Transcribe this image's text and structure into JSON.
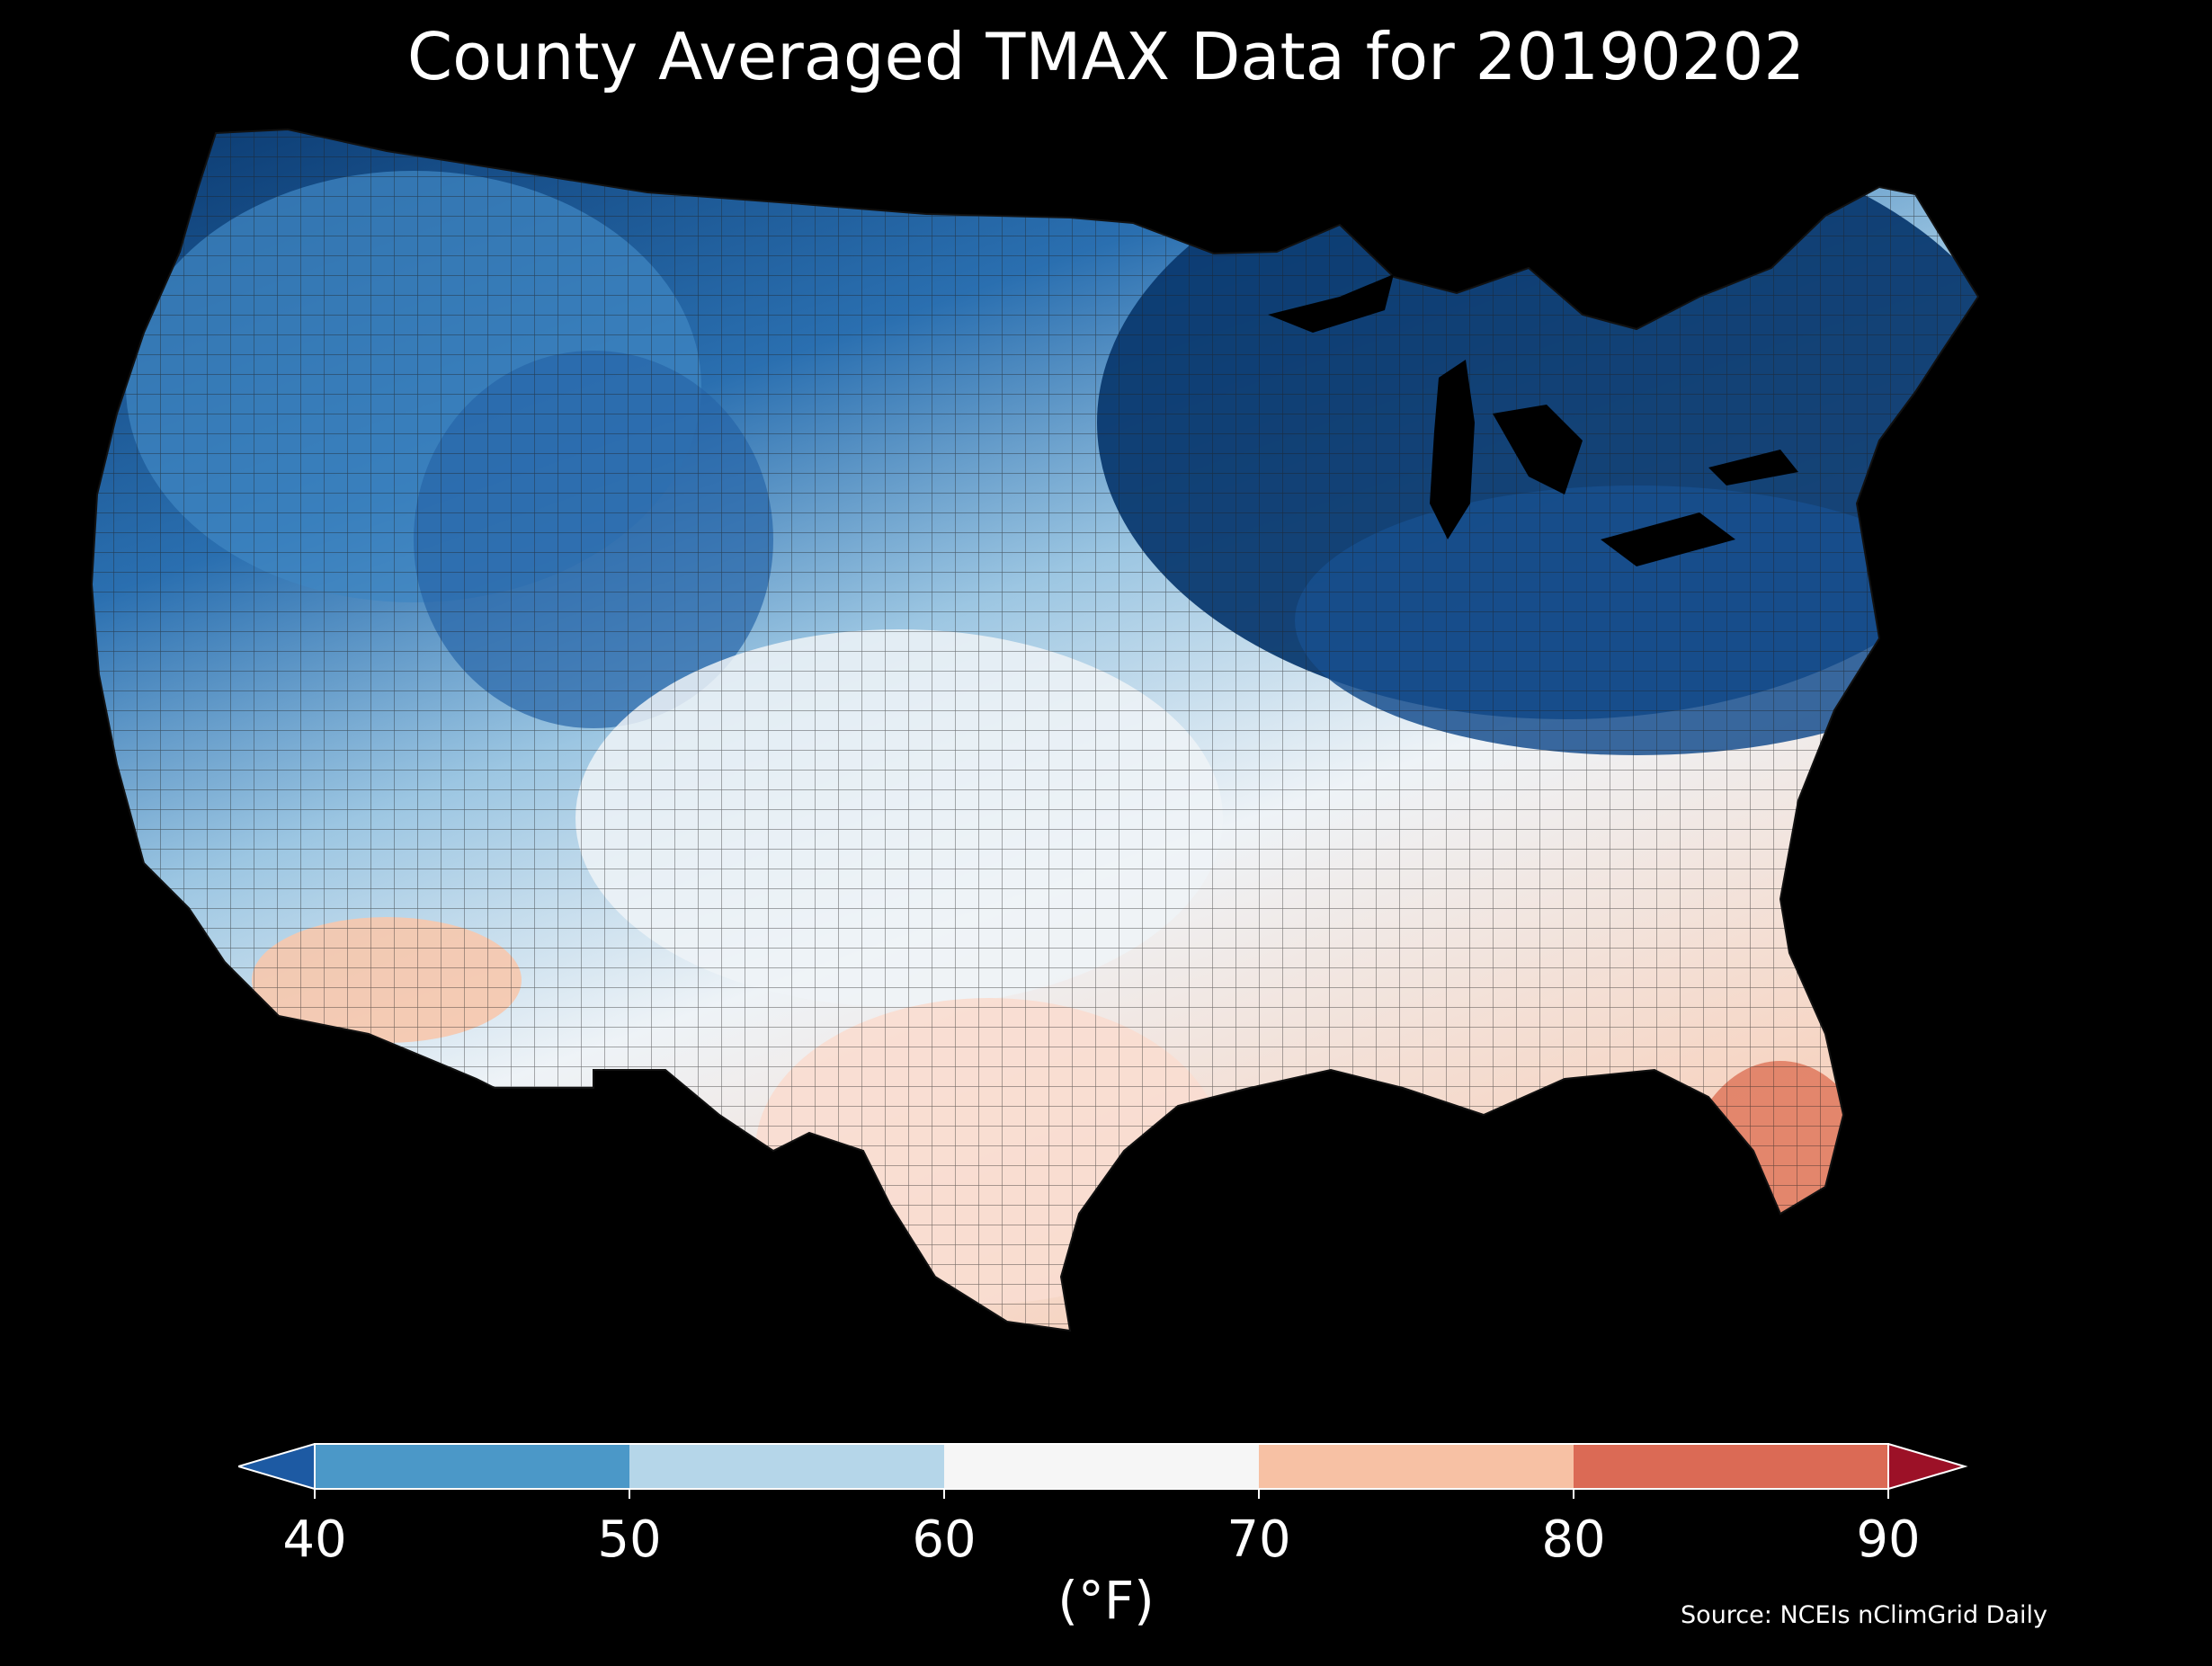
{
  "title": "County Averaged TMAX Data for 20190202",
  "colorbar": {
    "unit_label": "(°F)",
    "ticks": [
      "40",
      "50",
      "60",
      "70",
      "80",
      "90"
    ],
    "bins": [
      {
        "from": 40,
        "to": 50,
        "color": "#4b98c8"
      },
      {
        "from": 50,
        "to": 60,
        "color": "#b5d6e9"
      },
      {
        "from": 60,
        "to": 70,
        "color": "#f6f6f6"
      },
      {
        "from": 70,
        "to": 80,
        "color": "#f7c1a4"
      },
      {
        "from": 80,
        "to": 90,
        "color": "#db6a55"
      }
    ],
    "under_color": "#1d5aa3",
    "over_color": "#9c1127",
    "extend": "both"
  },
  "source": "Source: NCEIs nClimGrid Daily",
  "map": {
    "region": "Contiguous United States counties",
    "variable": "TMAX",
    "units": "°F",
    "background_color": "#000000",
    "county_border_color": "#2a2a2a"
  }
}
